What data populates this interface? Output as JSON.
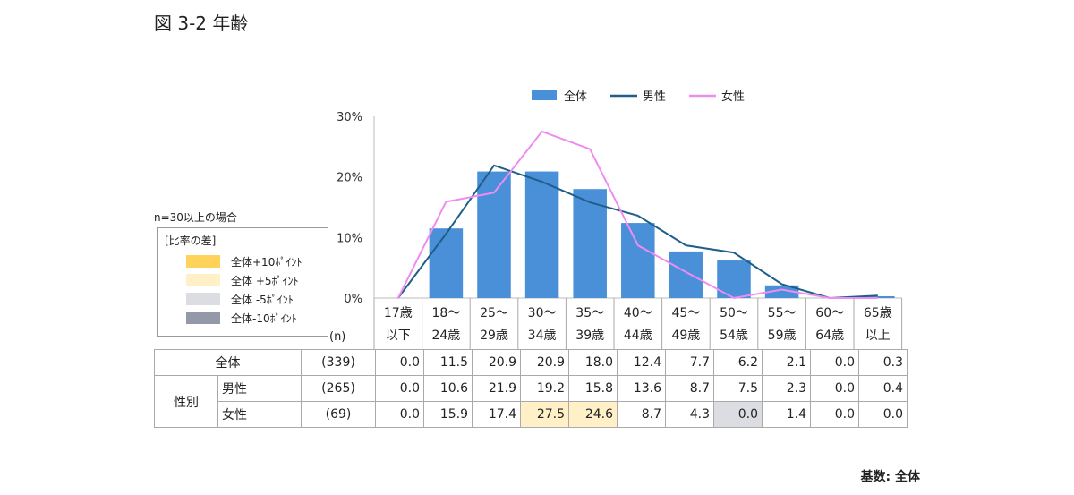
{
  "title": "図 3-2  年齢",
  "note": "n=30以上の場合",
  "base": "基数: 全体",
  "diff_legend": {
    "title": "[比率の差]",
    "items": [
      {
        "label": "全体+10ﾎﾟｲﾝﾄ",
        "color": "#ffd35a"
      },
      {
        "label": "全体 +5ﾎﾟｲﾝﾄ",
        "color": "#fff0c8"
      },
      {
        "label": "全体 -5ﾎﾟｲﾝﾄ",
        "color": "#dcdde2"
      },
      {
        "label": "全体-10ﾎﾟｲﾝﾄ",
        "color": "#9499aa"
      }
    ]
  },
  "n_label": "(n)",
  "chart_data": {
    "type": "bar+line",
    "categories": [
      [
        "17歳",
        "以下"
      ],
      [
        "18～",
        "24歳"
      ],
      [
        "25～",
        "29歳"
      ],
      [
        "30～",
        "34歳"
      ],
      [
        "35～",
        "39歳"
      ],
      [
        "40～",
        "44歳"
      ],
      [
        "45～",
        "49歳"
      ],
      [
        "50～",
        "54歳"
      ],
      [
        "55～",
        "59歳"
      ],
      [
        "60～",
        "64歳"
      ],
      [
        "65歳",
        "以上"
      ]
    ],
    "yticks": [
      "0%",
      "10%",
      "20%",
      "30%"
    ],
    "ylim": [
      0,
      30
    ],
    "legend_position": "top",
    "series": [
      {
        "name": "全体",
        "type": "bar",
        "color": "#4a90d9",
        "values": [
          0.0,
          11.5,
          20.9,
          20.9,
          18.0,
          12.4,
          7.7,
          6.2,
          2.1,
          0.0,
          0.3
        ]
      },
      {
        "name": "男性",
        "type": "line",
        "color": "#1f5f87",
        "values": [
          0.0,
          10.6,
          21.9,
          19.2,
          15.8,
          13.6,
          8.7,
          7.5,
          2.3,
          0.0,
          0.4
        ]
      },
      {
        "name": "女性",
        "type": "line",
        "color": "#f08cf0",
        "values": [
          0.0,
          15.9,
          17.4,
          27.5,
          24.6,
          8.7,
          4.3,
          0.0,
          1.4,
          0.0,
          0.0
        ]
      }
    ]
  },
  "table": {
    "group_label": "性別",
    "rows": [
      {
        "label": "全体",
        "n": "(339)",
        "values": [
          "0.0",
          "11.5",
          "20.9",
          "20.9",
          "18.0",
          "12.4",
          "7.7",
          "6.2",
          "2.1",
          "0.0",
          "0.3"
        ],
        "hl": []
      },
      {
        "label": "男性",
        "n": "(265)",
        "values": [
          "0.0",
          "10.6",
          "21.9",
          "19.2",
          "15.8",
          "13.6",
          "8.7",
          "7.5",
          "2.3",
          "0.0",
          "0.4"
        ],
        "hl": []
      },
      {
        "label": "女性",
        "n": "(69)",
        "values": [
          "0.0",
          "15.9",
          "17.4",
          "27.5",
          "24.6",
          "8.7",
          "4.3",
          "0.0",
          "1.4",
          "0.0",
          "0.0"
        ],
        "hl": [
          "",
          "",
          "",
          "hl5",
          "hl5",
          "",
          "",
          "lo5",
          "",
          "",
          ""
        ]
      }
    ]
  }
}
